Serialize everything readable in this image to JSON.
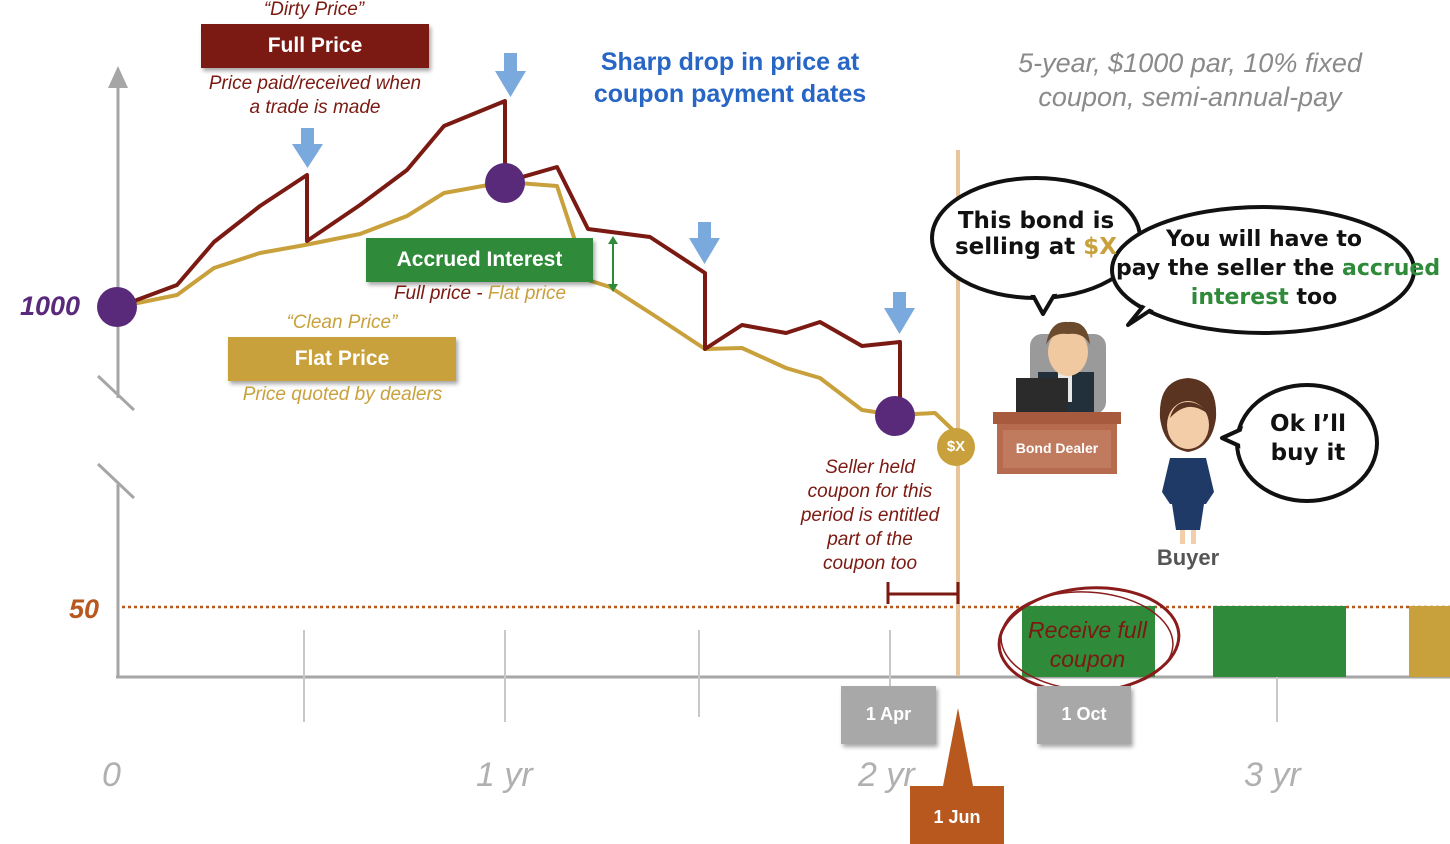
{
  "subtitle": {
    "line1": "5-year, $1000 par, 10% fixed",
    "line2": "coupon, semi-annual-pay"
  },
  "headline": {
    "line1": "Sharp drop in price at",
    "line2": "coupon payment dates"
  },
  "full_price": {
    "nickname": "“Dirty Price”",
    "label": "Full Price",
    "desc_line1": "Price paid/received when",
    "desc_line2": "a trade is made"
  },
  "flat_price": {
    "nickname": "“Clean Price”",
    "label": "Flat Price",
    "desc": "Price quoted by dealers"
  },
  "accrued": {
    "label": "Accrued Interest",
    "formula_full": "Full price",
    "formula_sep": " - ",
    "formula_flat": "Flat price"
  },
  "y_labels": {
    "par": "1000",
    "coupon": "50"
  },
  "x_labels": {
    "t0": "0",
    "t1": "1 yr",
    "t2": "2 yr",
    "t3": "3 yr"
  },
  "dates": {
    "apr": "1 Apr",
    "oct": "1 Oct",
    "jun": "1 Jun"
  },
  "marker_x": "$X",
  "seller_note": [
    "Seller held",
    "coupon for this",
    "period is entitled",
    "part of the",
    "coupon too"
  ],
  "receive_coupon": {
    "line1": "Receive full",
    "line2": "coupon"
  },
  "dealer_bubble": {
    "line1": "This bond is",
    "line2_pre": "selling at ",
    "line2_hl": "$X"
  },
  "buyer_bubble": {
    "line1": "You will have to",
    "line2_pre": "pay the seller the ",
    "line2_hl": "accrued",
    "line3_hl": "interest",
    "line3_post": " too"
  },
  "reply_bubble": {
    "line1": "Ok I’ll",
    "line2": "buy it"
  },
  "dealer_label": "Bond Dealer",
  "buyer_label": "Buyer",
  "colors": {
    "full": "#7b1a12",
    "flat": "#c9a13c",
    "accrued": "#2f8a3a",
    "purple": "#5a2a7a",
    "blue_arrow": "#7aa9de",
    "blue_text": "#2766c4",
    "brown": "#b8581f",
    "grey_axis": "#a6a6a6"
  }
}
